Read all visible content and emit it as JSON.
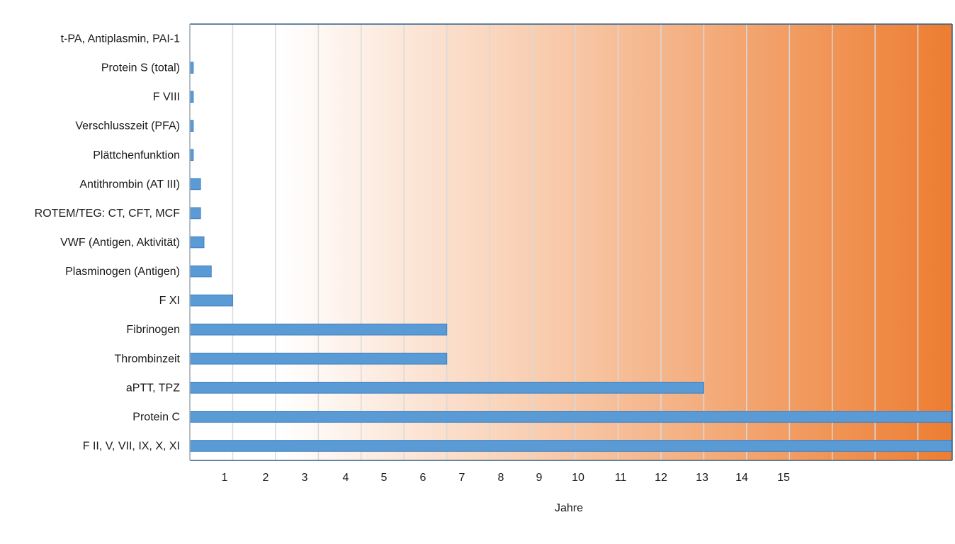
{
  "chart_data": {
    "type": "bar",
    "orientation": "horizontal",
    "title": "",
    "xlabel": "Jahre",
    "ylabel": "",
    "xlim": [
      0,
      17.8
    ],
    "x_ticks": [
      "1",
      "2",
      "3",
      "4",
      "5",
      "6",
      "7",
      "8",
      "9",
      "10",
      "11",
      "12",
      "13",
      "14",
      "15"
    ],
    "grid": true,
    "background": "gradient-white-to-orange",
    "colors": {
      "bar_fill": "#5b9bd5",
      "bar_stroke": "#3f7fbf",
      "gradient_start": "#ffffff",
      "gradient_end": "#ed7d31",
      "axis": "#2e5f8a"
    },
    "categories": [
      "t-PA, Antiplasmin, PAI-1",
      "Protein S (total)",
      "F VIII",
      "Verschlusszeit (PFA)",
      "Plättchenfunktion",
      "Antithrombin (AT III)",
      "ROTEM/TEG: CT, CFT, MCF",
      "VWF (Antigen, Aktivität)",
      "Plasminogen (Antigen)",
      "F XI",
      "Fibrinogen",
      "Thrombinzeit",
      "aPTT, TPZ",
      "Protein C",
      "F II, V, VII, IX, X, XI"
    ],
    "values": [
      0,
      0.08,
      0.08,
      0.08,
      0.08,
      0.25,
      0.25,
      0.33,
      0.5,
      1,
      6,
      6,
      12,
      17.8,
      17.8
    ]
  }
}
